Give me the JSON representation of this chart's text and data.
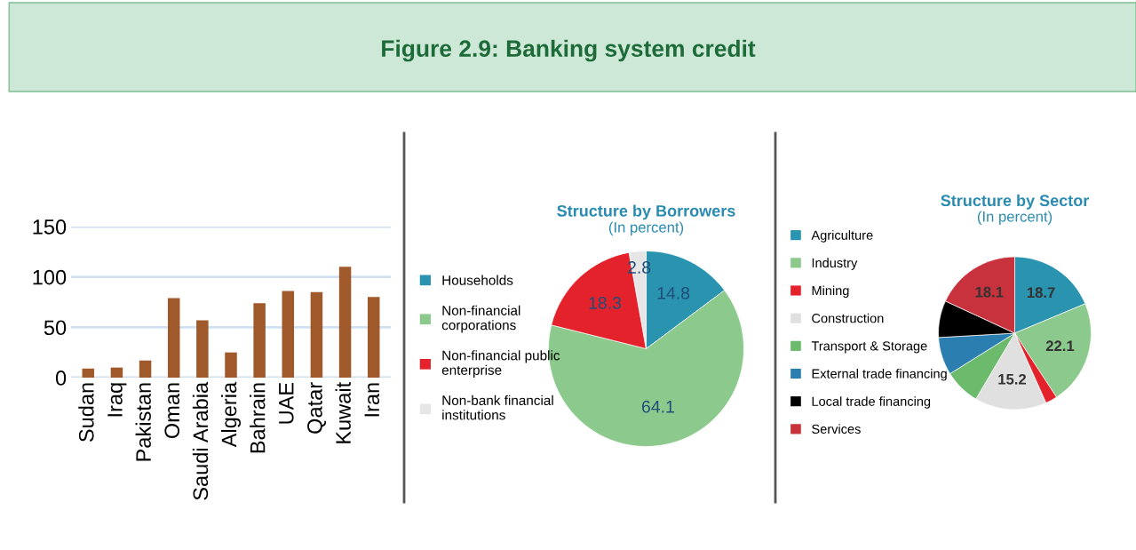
{
  "chart_data": [
    {
      "type": "bar",
      "title": "Figure 2.9: Banking system credit",
      "categories": [
        "Sudan",
        "Iraq",
        "Pakistan",
        "Oman",
        "Saudi Arabia",
        "Algeria",
        "Bahrain",
        "UAE",
        "Qatar",
        "Kuwait",
        "Iran"
      ],
      "values": [
        9,
        10,
        17,
        79,
        57,
        25,
        74,
        86,
        85,
        110,
        80
      ],
      "color": "#a0592a",
      "ylim": [
        0,
        150
      ],
      "yticks": [
        0,
        50,
        100,
        150
      ],
      "grid": "y"
    },
    {
      "type": "pie",
      "title": "Structure by Borrowers",
      "subtitle": "(In percent)",
      "categories": [
        "Households",
        "Non-financial corporations",
        "Non-financial public enterprise",
        "Non-bank financial institutions"
      ],
      "values": [
        14.8,
        64.1,
        18.3,
        2.8
      ],
      "colors": [
        "#2a93b0",
        "#8cc98c",
        "#e3222c",
        "#e6e6e6"
      ],
      "data_labels": true,
      "legend": "left"
    },
    {
      "type": "pie",
      "title": "Structure by Sector",
      "subtitle": "(In percent)",
      "categories": [
        "Agriculture",
        "Industry",
        "Mining",
        "Construction",
        "Transport & Storage",
        "External trade financing",
        "Local trade financing",
        "Services"
      ],
      "values": [
        18.7,
        22.1,
        2.5,
        15.2,
        7.6,
        8.0,
        7.8,
        18.1
      ],
      "colors": [
        "#2a93b0",
        "#8cc98c",
        "#e3222c",
        "#e0e0e0",
        "#6cbb6c",
        "#2a7fb0",
        "#000000",
        "#c8323c"
      ],
      "value_labels": [
        "18.7",
        "22.1",
        null,
        "15.2",
        null,
        null,
        null,
        "18.1"
      ],
      "legend": "left"
    }
  ]
}
